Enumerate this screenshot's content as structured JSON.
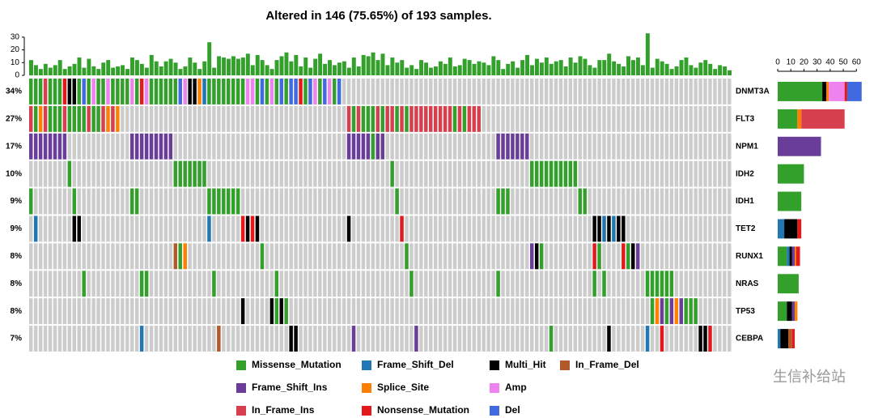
{
  "chart_data": {
    "type": "oncoplot",
    "title": "Altered in 146 (75.65%) of 193 samples.",
    "classes": [
      {
        "name": "Missense_Mutation",
        "color": "#33a02c"
      },
      {
        "name": "Frame_Shift_Del",
        "color": "#1f78b4"
      },
      {
        "name": "Multi_Hit",
        "color": "#000000"
      },
      {
        "name": "In_Frame_Del",
        "color": "#b15928"
      },
      {
        "name": "Frame_Shift_Ins",
        "color": "#6a3d9a"
      },
      {
        "name": "Splice_Site",
        "color": "#ff7f00"
      },
      {
        "name": "Amp",
        "color": "#ee82ee"
      },
      {
        "name": "In_Frame_Ins",
        "color": "#d6404e"
      },
      {
        "name": "Nonsense_Mutation",
        "color": "#e31a1c"
      },
      {
        "name": "Del",
        "color": "#4169e1"
      }
    ],
    "sample_totals": [
      12,
      8,
      5,
      9,
      6,
      8,
      12,
      5,
      7,
      9,
      14,
      6,
      13,
      7,
      5,
      10,
      12,
      6,
      7,
      8,
      5,
      14,
      12,
      9,
      6,
      16,
      11,
      7,
      11,
      13,
      10,
      5,
      7,
      14,
      10,
      5,
      11,
      26,
      6,
      15,
      14,
      13,
      15,
      13,
      14,
      17,
      8,
      16,
      12,
      8,
      5,
      12,
      15,
      18,
      11,
      16,
      7,
      14,
      6,
      13,
      17,
      9,
      12,
      8,
      10,
      11,
      6,
      14,
      7,
      16,
      15,
      18,
      12,
      17,
      8,
      14,
      10,
      12,
      6,
      8,
      5,
      12,
      10,
      6,
      7,
      11,
      9,
      14,
      7,
      8,
      13,
      12,
      9,
      11,
      10,
      8,
      15,
      12,
      5,
      9,
      11,
      6,
      12,
      16,
      8,
      13,
      10,
      14,
      9,
      11,
      12,
      7,
      14,
      10,
      15,
      13,
      8,
      6,
      12,
      12,
      17,
      11,
      9,
      7,
      15,
      12,
      14,
      8,
      33,
      6,
      13,
      11,
      9,
      5,
      7,
      12,
      14,
      8,
      6,
      10,
      12,
      9,
      5,
      8,
      7,
      4
    ],
    "ylim": [
      0,
      35
    ],
    "yticks": [
      0,
      10,
      20,
      30
    ],
    "gene_xlim": [
      0,
      66
    ],
    "gene_xticks": [
      0,
      10,
      20,
      30,
      40,
      50,
      60
    ],
    "genes": [
      {
        "name": "DNMT3A",
        "pct": "34%",
        "counts": [
          34,
          0,
          3,
          0,
          0,
          2,
          12,
          0,
          2,
          11
        ],
        "runs": [
          [
            0,
            3,
            0
          ],
          [
            3,
            1,
            7
          ],
          [
            4,
            3,
            0
          ],
          [
            7,
            1,
            8
          ],
          [
            8,
            2,
            2
          ],
          [
            10,
            1,
            0
          ],
          [
            11,
            1,
            9
          ],
          [
            12,
            1,
            0
          ],
          [
            13,
            1,
            6
          ],
          [
            14,
            2,
            0
          ],
          [
            16,
            1,
            6
          ],
          [
            17,
            4,
            0
          ],
          [
            21,
            1,
            6
          ],
          [
            22,
            1,
            0
          ],
          [
            23,
            1,
            8
          ],
          [
            24,
            1,
            6
          ],
          [
            25,
            6,
            0
          ],
          [
            31,
            1,
            9
          ],
          [
            32,
            1,
            6
          ],
          [
            33,
            2,
            2
          ],
          [
            35,
            1,
            5
          ],
          [
            36,
            1,
            1
          ],
          [
            37,
            8,
            0
          ],
          [
            45,
            2,
            6
          ],
          [
            47,
            1,
            0
          ],
          [
            48,
            1,
            9
          ],
          [
            49,
            1,
            0
          ],
          [
            50,
            1,
            6
          ],
          [
            51,
            1,
            0
          ],
          [
            52,
            1,
            9
          ],
          [
            53,
            1,
            0
          ],
          [
            54,
            1,
            9
          ],
          [
            55,
            1,
            9
          ],
          [
            56,
            1,
            8
          ],
          [
            57,
            1,
            0
          ],
          [
            58,
            1,
            9
          ],
          [
            59,
            1,
            6
          ],
          [
            60,
            1,
            0
          ],
          [
            61,
            1,
            9
          ],
          [
            62,
            1,
            6
          ],
          [
            63,
            1,
            0
          ],
          [
            64,
            1,
            9
          ]
        ]
      },
      {
        "name": "FLT3",
        "pct": "27%",
        "counts": [
          15,
          0,
          0,
          0,
          0,
          3,
          0,
          33,
          0,
          0
        ],
        "runs": [
          [
            0,
            1,
            7
          ],
          [
            1,
            1,
            0
          ],
          [
            2,
            1,
            5
          ],
          [
            3,
            1,
            7
          ],
          [
            4,
            3,
            0
          ],
          [
            7,
            1,
            7
          ],
          [
            8,
            4,
            0
          ],
          [
            12,
            1,
            7
          ],
          [
            13,
            2,
            0
          ],
          [
            15,
            1,
            7
          ],
          [
            16,
            1,
            5
          ],
          [
            17,
            1,
            7
          ],
          [
            18,
            1,
            5
          ],
          [
            66,
            1,
            7
          ],
          [
            67,
            1,
            0
          ],
          [
            68,
            1,
            7
          ],
          [
            69,
            3,
            0
          ],
          [
            72,
            1,
            7
          ],
          [
            73,
            1,
            0
          ],
          [
            74,
            2,
            7
          ],
          [
            76,
            1,
            0
          ],
          [
            77,
            1,
            7
          ],
          [
            78,
            1,
            0
          ],
          [
            79,
            9,
            7
          ],
          [
            88,
            1,
            0
          ],
          [
            89,
            1,
            7
          ],
          [
            90,
            1,
            0
          ],
          [
            91,
            3,
            7
          ]
        ]
      },
      {
        "name": "NPM1",
        "pct": "17%",
        "counts": [
          0,
          0,
          0,
          0,
          33,
          0,
          0,
          0,
          0,
          0
        ],
        "runs": [
          [
            0,
            8,
            4
          ],
          [
            21,
            9,
            4
          ],
          [
            66,
            5,
            4
          ],
          [
            71,
            1,
            0
          ],
          [
            72,
            2,
            4
          ],
          [
            97,
            7,
            4
          ]
        ]
      },
      {
        "name": "IDH2",
        "pct": "10%",
        "counts": [
          20,
          0,
          0,
          0,
          0,
          0,
          0,
          0,
          0,
          0
        ],
        "runs": [
          [
            8,
            1,
            0
          ],
          [
            30,
            7,
            0
          ],
          [
            75,
            1,
            0
          ],
          [
            104,
            10,
            0
          ]
        ]
      },
      {
        "name": "IDH1",
        "pct": "9%",
        "counts": [
          18,
          0,
          0,
          0,
          0,
          0,
          0,
          0,
          0,
          0
        ],
        "runs": [
          [
            0,
            1,
            0
          ],
          [
            9,
            1,
            0
          ],
          [
            21,
            1,
            0
          ],
          [
            22,
            1,
            0
          ],
          [
            37,
            7,
            0
          ],
          [
            76,
            1,
            0
          ],
          [
            97,
            3,
            0
          ],
          [
            114,
            2,
            0
          ]
        ]
      },
      {
        "name": "TET2",
        "pct": "9%",
        "counts": [
          0,
          5,
          10,
          0,
          0,
          0,
          0,
          0,
          3,
          0
        ],
        "runs": [
          [
            1,
            1,
            1
          ],
          [
            9,
            2,
            2
          ],
          [
            37,
            1,
            1
          ],
          [
            44,
            1,
            8
          ],
          [
            45,
            1,
            2
          ],
          [
            46,
            1,
            8
          ],
          [
            47,
            1,
            2
          ],
          [
            66,
            1,
            2
          ],
          [
            77,
            1,
            8
          ],
          [
            117,
            2,
            2
          ],
          [
            119,
            1,
            1
          ],
          [
            120,
            1,
            2
          ],
          [
            121,
            1,
            1
          ],
          [
            122,
            2,
            2
          ]
        ]
      },
      {
        "name": "RUNX1",
        "pct": "8%",
        "counts": [
          7,
          2,
          2,
          0,
          2,
          1,
          0,
          0,
          3,
          0
        ],
        "runs": [
          [
            30,
            1,
            3
          ],
          [
            31,
            1,
            0
          ],
          [
            32,
            1,
            5
          ],
          [
            48,
            1,
            0
          ],
          [
            78,
            1,
            0
          ],
          [
            104,
            1,
            4
          ],
          [
            105,
            1,
            2
          ],
          [
            106,
            1,
            0
          ],
          [
            117,
            1,
            8
          ],
          [
            118,
            1,
            0
          ],
          [
            123,
            1,
            8
          ],
          [
            124,
            1,
            0
          ],
          [
            125,
            1,
            2
          ],
          [
            126,
            1,
            4
          ]
        ]
      },
      {
        "name": "NRAS",
        "pct": "8%",
        "counts": [
          16,
          0,
          0,
          0,
          0,
          0,
          0,
          0,
          0,
          0
        ],
        "runs": [
          [
            11,
            1,
            0
          ],
          [
            23,
            2,
            0
          ],
          [
            38,
            1,
            0
          ],
          [
            51,
            1,
            0
          ],
          [
            79,
            1,
            0
          ],
          [
            97,
            1,
            0
          ],
          [
            117,
            1,
            0
          ],
          [
            119,
            1,
            0
          ],
          [
            128,
            6,
            0
          ]
        ]
      },
      {
        "name": "TP53",
        "pct": "8%",
        "counts": [
          7,
          0,
          4,
          0,
          2,
          2,
          0,
          0,
          0,
          0
        ],
        "runs": [
          [
            44,
            1,
            2
          ],
          [
            50,
            1,
            2
          ],
          [
            51,
            1,
            0
          ],
          [
            52,
            1,
            2
          ],
          [
            53,
            1,
            0
          ],
          [
            129,
            1,
            0
          ],
          [
            130,
            1,
            5
          ],
          [
            131,
            1,
            4
          ],
          [
            132,
            1,
            0
          ],
          [
            133,
            1,
            4
          ],
          [
            134,
            1,
            5
          ],
          [
            135,
            1,
            4
          ],
          [
            136,
            3,
            0
          ]
        ]
      },
      {
        "name": "CEBPA",
        "pct": "7%",
        "counts": [
          0,
          2,
          6,
          3,
          0,
          0,
          0,
          0,
          2,
          0
        ],
        "runs": [
          [
            23,
            1,
            1
          ],
          [
            39,
            1,
            3
          ],
          [
            54,
            2,
            2
          ],
          [
            67,
            1,
            4
          ],
          [
            80,
            1,
            4
          ],
          [
            108,
            1,
            0
          ],
          [
            120,
            1,
            2
          ],
          [
            128,
            1,
            1
          ],
          [
            131,
            1,
            8
          ],
          [
            139,
            1,
            2
          ],
          [
            140,
            1,
            2
          ],
          [
            141,
            1,
            8
          ]
        ]
      }
    ],
    "watermark": "生信补给站"
  }
}
